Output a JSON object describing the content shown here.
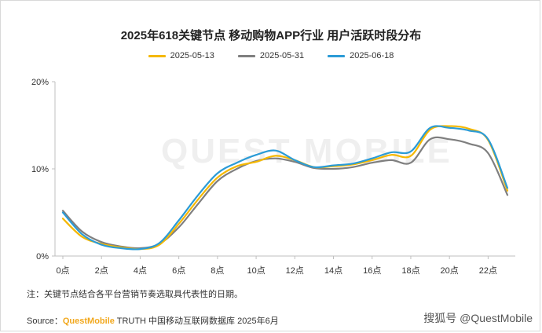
{
  "chart_data": {
    "type": "line",
    "title": "2025年618关键节点 移动购物APP行业 用户活跃时段分布",
    "xlabel": "",
    "ylabel": "",
    "x": [
      0,
      1,
      2,
      3,
      4,
      5,
      6,
      7,
      8,
      9,
      10,
      11,
      12,
      13,
      14,
      15,
      16,
      17,
      18,
      19,
      20,
      21,
      22,
      23
    ],
    "x_tick_labels": [
      "0点",
      "2点",
      "4点",
      "6点",
      "8点",
      "10点",
      "12点",
      "14点",
      "16点",
      "18点",
      "20点",
      "22点"
    ],
    "x_tick_values": [
      0,
      2,
      4,
      6,
      8,
      10,
      12,
      14,
      16,
      18,
      20,
      22
    ],
    "y_tick_labels": [
      "0%",
      "10%",
      "20%"
    ],
    "y_tick_values": [
      0,
      10,
      20
    ],
    "ylim": [
      0,
      20
    ],
    "xlim": [
      0,
      23
    ],
    "grid": false,
    "legend_position": "top-center",
    "series": [
      {
        "name": "2025-05-13",
        "color": "#f5b800",
        "values": [
          4.3,
          2.2,
          1.4,
          1.0,
          0.8,
          1.3,
          3.7,
          6.5,
          9.0,
          10.3,
          10.8,
          11.5,
          11.0,
          10.2,
          10.3,
          10.5,
          11.0,
          11.6,
          11.5,
          14.5,
          14.9,
          14.6,
          13.3,
          7.5
        ]
      },
      {
        "name": "2025-05-31",
        "color": "#7f7f7f",
        "values": [
          5.2,
          2.8,
          1.6,
          1.1,
          0.9,
          1.4,
          3.3,
          6.0,
          8.6,
          10.0,
          10.9,
          11.2,
          10.8,
          10.1,
          10.0,
          10.2,
          10.7,
          11.0,
          10.7,
          13.4,
          13.4,
          12.9,
          11.8,
          7.0
        ]
      },
      {
        "name": "2025-06-18",
        "color": "#2b9bd6",
        "values": [
          5.0,
          2.5,
          1.3,
          0.9,
          0.8,
          1.5,
          4.1,
          7.0,
          9.5,
          10.7,
          11.6,
          12.1,
          11.0,
          10.2,
          10.4,
          10.6,
          11.2,
          11.9,
          12.0,
          14.7,
          14.7,
          14.4,
          13.4,
          7.8
        ]
      }
    ]
  },
  "note": "注：关键节点结合各平台营销节奏选取具代表性的日期。",
  "source": {
    "prefix": "Source：",
    "brand": "QuestMobile",
    "rest": " TRUTH 中国移动互联网数据库 2025年6月"
  },
  "watermark_corner": "搜狐号 @QuestMobile",
  "watermark_center": "QUEST MOBILE"
}
